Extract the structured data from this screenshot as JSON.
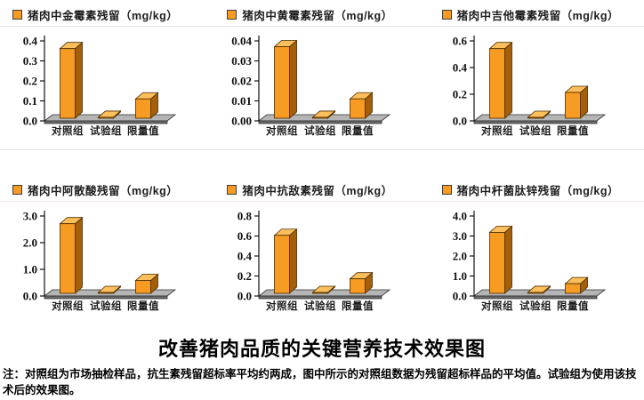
{
  "page": {
    "title": "改善猪肉品质的关键营养技术效果图",
    "note": "注：对照组为市场抽检样品，抗生素残留超标率平均约两成，图中所示的对照组数据为残留超标样品的平均值。试验组为使用该技术后的效果图。"
  },
  "colors": {
    "bar_front": "#F79B22",
    "bar_top": "#FDBE5C",
    "bar_side": "#A55F08",
    "bar_outline": "#4a2c00",
    "floor_top": "#b5b5b5",
    "floor_front": "#6a6a6a",
    "floor_outline": "#2e2e2e",
    "axis": "#111111"
  },
  "chart_data": [
    {
      "type": "bar",
      "title": "猪肉中金霉素残留（mg/kg）",
      "categories": [
        "对照组",
        "试验组",
        "限量值"
      ],
      "values": [
        0.36,
        0.005,
        0.1
      ],
      "ymax": 0.4,
      "ylim": [
        0,
        0.4
      ],
      "yticks": [
        "0.4",
        "0.3",
        "0.2",
        "0.1",
        "0.0"
      ],
      "unit": "mg/kg"
    },
    {
      "type": "bar",
      "title": "猪肉中黄霉素残留（mg/kg）",
      "categories": [
        "对照组",
        "试验组",
        "限量值"
      ],
      "values": [
        0.037,
        0.0005,
        0.01
      ],
      "ymax": 0.04,
      "ylim": [
        0,
        0.04
      ],
      "yticks": [
        "0.04",
        "0.03",
        "0.02",
        "0.01",
        "0.00"
      ],
      "unit": "mg/kg"
    },
    {
      "type": "bar",
      "title": "猪肉中吉他霉素残留（mg/kg）",
      "categories": [
        "对照组",
        "试验组",
        "限量值"
      ],
      "values": [
        0.54,
        0.005,
        0.2
      ],
      "ymax": 0.6,
      "ylim": [
        0,
        0.6
      ],
      "yticks": [
        "0.6",
        "0.4",
        "0.2",
        "0.0"
      ],
      "unit": "mg/kg"
    },
    {
      "type": "bar",
      "title": "猪肉中阿散酸残留（mg/kg）",
      "categories": [
        "对照组",
        "试验组",
        "限量值"
      ],
      "values": [
        2.7,
        0.02,
        0.5
      ],
      "ymax": 3.0,
      "ylim": [
        0,
        3.0
      ],
      "yticks": [
        "3.0",
        "2.0",
        "1.0",
        "0.0"
      ],
      "unit": "mg/kg"
    },
    {
      "type": "bar",
      "title": "猪肉中抗敌素残留（mg/kg）",
      "categories": [
        "对照组",
        "试验组",
        "限量值"
      ],
      "values": [
        0.6,
        0.005,
        0.15
      ],
      "ymax": 0.8,
      "ylim": [
        0,
        0.8
      ],
      "yticks": [
        "0.8",
        "0.6",
        "0.4",
        "0.2",
        "0.0"
      ],
      "unit": "mg/kg"
    },
    {
      "type": "bar",
      "title": "猪肉中杆菌肽锌残留（mg/kg）",
      "categories": [
        "对照组",
        "试验组",
        "限量值"
      ],
      "values": [
        3.15,
        0.05,
        0.5
      ],
      "ymax": 4.0,
      "ylim": [
        0,
        4.0
      ],
      "yticks": [
        "4.0",
        "3.0",
        "2.0",
        "1.0",
        "0.0"
      ],
      "unit": "mg/kg"
    }
  ]
}
